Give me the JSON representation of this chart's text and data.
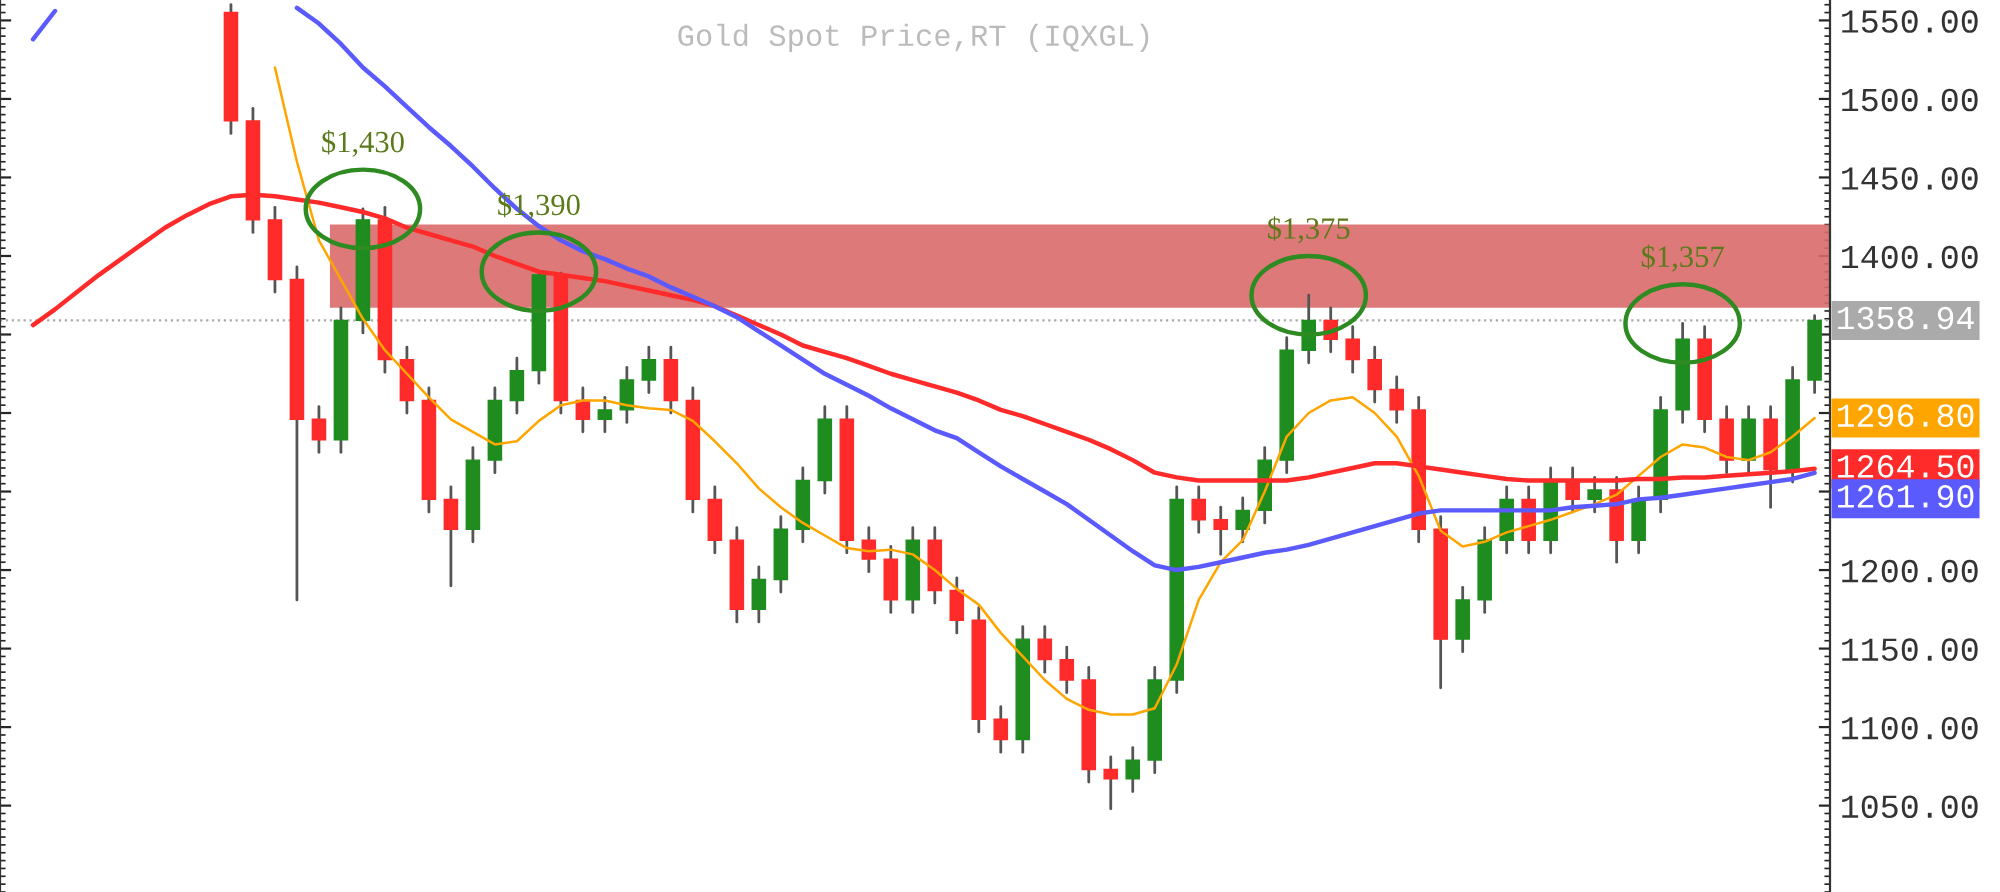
{
  "chart_data": {
    "type": "candlestick",
    "title": "Gold Spot Price,RT (IQXGL)",
    "categories": [
      null,
      null,
      null,
      null,
      null,
      null,
      null,
      null,
      null,
      null,
      null,
      null,
      null,
      null,
      null,
      null,
      null,
      null,
      null,
      null,
      null,
      null,
      null,
      null,
      null,
      null,
      null,
      null,
      null,
      null,
      null,
      null,
      null,
      null,
      null,
      null,
      null,
      null,
      null,
      null,
      null,
      null,
      null,
      null,
      null,
      null,
      null,
      null,
      null,
      null,
      null,
      null,
      null,
      null,
      null,
      null,
      null,
      null,
      null,
      null,
      null,
      null,
      null,
      null,
      null,
      null,
      null,
      null,
      null,
      null,
      null,
      null,
      null,
      null,
      null,
      null,
      null,
      null,
      null,
      null,
      null,
      null
    ],
    "ohlc": [
      null,
      null,
      null,
      null,
      null,
      null,
      null,
      null,
      null,
      [
        1555,
        1560,
        1478,
        1486
      ],
      [
        1486,
        1494,
        1415,
        1423
      ],
      [
        1423,
        1431,
        1377,
        1385
      ],
      [
        1385,
        1393,
        1181,
        1296
      ],
      [
        1296,
        1304,
        1275,
        1283
      ],
      [
        1283,
        1367,
        1275,
        1359
      ],
      [
        1359,
        1430,
        1351,
        1423
      ],
      [
        1423,
        1431,
        1326,
        1334
      ],
      [
        1334,
        1342,
        1300,
        1308
      ],
      [
        1308,
        1316,
        1237,
        1245
      ],
      [
        1245,
        1253,
        1190,
        1226
      ],
      [
        1226,
        1278,
        1218,
        1270
      ],
      [
        1270,
        1316,
        1262,
        1308
      ],
      [
        1308,
        1335,
        1300,
        1327
      ],
      [
        1327,
        1390,
        1319,
        1388
      ],
      [
        1388,
        1389,
        1300,
        1308
      ],
      [
        1308,
        1316,
        1288,
        1296
      ],
      [
        1296,
        1310,
        1288,
        1302
      ],
      [
        1302,
        1329,
        1294,
        1321
      ],
      [
        1321,
        1342,
        1313,
        1334
      ],
      [
        1334,
        1342,
        1300,
        1308
      ],
      [
        1308,
        1316,
        1237,
        1245
      ],
      [
        1245,
        1253,
        1211,
        1219
      ],
      [
        1219,
        1227,
        1167,
        1175
      ],
      [
        1175,
        1202,
        1167,
        1194
      ],
      [
        1194,
        1234,
        1186,
        1226
      ],
      [
        1226,
        1265,
        1218,
        1257
      ],
      [
        1257,
        1304,
        1249,
        1296
      ],
      [
        1296,
        1304,
        1211,
        1219
      ],
      [
        1219,
        1227,
        1199,
        1207
      ],
      [
        1207,
        1215,
        1173,
        1181
      ],
      [
        1181,
        1227,
        1173,
        1219
      ],
      [
        1219,
        1227,
        1179,
        1187
      ],
      [
        1187,
        1195,
        1160,
        1168
      ],
      [
        1168,
        1176,
        1097,
        1105
      ],
      [
        1105,
        1113,
        1084,
        1092
      ],
      [
        1092,
        1164,
        1084,
        1156
      ],
      [
        1156,
        1164,
        1135,
        1143
      ],
      [
        1143,
        1151,
        1122,
        1130
      ],
      [
        1130,
        1138,
        1065,
        1073
      ],
      [
        1073,
        1081,
        1048,
        1067
      ],
      [
        1067,
        1087,
        1059,
        1079
      ],
      [
        1079,
        1138,
        1071,
        1130
      ],
      [
        1130,
        1253,
        1122,
        1245
      ],
      [
        1245,
        1253,
        1224,
        1232
      ],
      [
        1232,
        1240,
        1210,
        1226
      ],
      [
        1226,
        1246,
        1218,
        1238
      ],
      [
        1238,
        1278,
        1230,
        1270
      ],
      [
        1270,
        1348,
        1262,
        1340
      ],
      [
        1340,
        1375,
        1332,
        1359
      ],
      [
        1359,
        1367,
        1339,
        1347
      ],
      [
        1347,
        1355,
        1326,
        1334
      ],
      [
        1334,
        1342,
        1307,
        1315
      ],
      [
        1315,
        1323,
        1294,
        1302
      ],
      [
        1302,
        1310,
        1218,
        1226
      ],
      [
        1226,
        1234,
        1125,
        1156
      ],
      [
        1156,
        1189,
        1148,
        1181
      ],
      [
        1181,
        1227,
        1173,
        1219
      ],
      [
        1219,
        1253,
        1211,
        1245
      ],
      [
        1245,
        1253,
        1211,
        1219
      ],
      [
        1219,
        1265,
        1211,
        1257
      ],
      [
        1257,
        1265,
        1237,
        1245
      ],
      [
        1245,
        1259,
        1237,
        1251
      ],
      [
        1251,
        1259,
        1205,
        1219
      ],
      [
        1219,
        1253,
        1211,
        1245
      ],
      [
        1245,
        1310,
        1237,
        1302
      ],
      [
        1302,
        1357,
        1294,
        1347
      ],
      [
        1347,
        1355,
        1288,
        1296
      ],
      [
        1296,
        1304,
        1262,
        1270
      ],
      [
        1270,
        1304,
        1262,
        1296
      ],
      [
        1296,
        1304,
        1240,
        1264
      ],
      [
        1264,
        1329,
        1256,
        1321
      ],
      [
        1321,
        1362,
        1313,
        1358.94
      ]
    ],
    "series": [
      {
        "type": "line",
        "color": "#ffa500",
        "values": [
          null,
          null,
          null,
          null,
          null,
          null,
          null,
          null,
          null,
          null,
          null,
          1520,
          1460,
          1410,
          1385,
          1360,
          1340,
          1325,
          1310,
          1296,
          1288,
          1280,
          1282,
          1295,
          1305,
          1308,
          1308,
          1305,
          1303,
          1302,
          1295,
          1282,
          1268,
          1252,
          1240,
          1230,
          1222,
          1214,
          1212,
          1213,
          1210,
          1200,
          1188,
          1178,
          1160,
          1145,
          1130,
          1118,
          1111,
          1108,
          1108,
          1112,
          1140,
          1181,
          1205,
          1219,
          1250,
          1285,
          1300,
          1308,
          1310,
          1300,
          1285,
          1260,
          1225,
          1215,
          1218,
          1224,
          1228,
          1232,
          1237,
          1242,
          1248,
          1260,
          1272,
          1280,
          1278,
          1272,
          1270,
          1275,
          1285,
          1296.8
        ],
        "value_labels": [
          null,
          null,
          null,
          null,
          null,
          null,
          null,
          null,
          null,
          null,
          null,
          null,
          null,
          null,
          null,
          null,
          null,
          null,
          null,
          null,
          null,
          null,
          null,
          null,
          null,
          null,
          null,
          null,
          null,
          null,
          null,
          null,
          null,
          null,
          null,
          null,
          null,
          null,
          null,
          null,
          null,
          null,
          null,
          null,
          null,
          null,
          null,
          null,
          null,
          null,
          null,
          null,
          null,
          null,
          null,
          null,
          null,
          null,
          null,
          null,
          null,
          null,
          null,
          null,
          null,
          null,
          null,
          null,
          null,
          null,
          null,
          null,
          null,
          null,
          null,
          null,
          null,
          null,
          null,
          null,
          null,
          "1296.80"
        ]
      },
      {
        "type": "line",
        "color": "#ff2a2a",
        "values": [
          1356,
          1366,
          1377,
          1388,
          1398,
          1408,
          1418,
          1426,
          1433,
          1438,
          1439,
          1438,
          1436,
          1434,
          1431,
          1428,
          1424,
          1418,
          1414,
          1410,
          1406,
          1400,
          1395,
          1390,
          1388,
          1386,
          1384,
          1381,
          1378,
          1375,
          1372,
          1368,
          1362,
          1356,
          1350,
          1343,
          1339,
          1335,
          1330,
          1325,
          1321,
          1317,
          1313,
          1308,
          1302,
          1298,
          1293,
          1288,
          1283,
          1277,
          1270,
          1262,
          1259,
          1257,
          1257,
          1257,
          1257,
          1257,
          1259,
          1262,
          1265,
          1268,
          1268,
          1266,
          1264,
          1262,
          1260,
          1258,
          1257,
          1257,
          1257,
          1257,
          1257,
          1258,
          1258,
          1259,
          1259,
          1260,
          1261,
          1262,
          1263,
          1264.5
        ],
        "value_labels": [
          null,
          null,
          null,
          null,
          null,
          null,
          null,
          null,
          null,
          null,
          null,
          null,
          null,
          null,
          null,
          null,
          null,
          null,
          null,
          null,
          null,
          null,
          null,
          null,
          null,
          null,
          null,
          null,
          null,
          null,
          null,
          null,
          null,
          null,
          null,
          null,
          null,
          null,
          null,
          null,
          null,
          null,
          null,
          null,
          null,
          null,
          null,
          null,
          null,
          null,
          null,
          null,
          null,
          null,
          null,
          null,
          null,
          null,
          null,
          null,
          null,
          null,
          null,
          null,
          null,
          null,
          null,
          null,
          null,
          null,
          null,
          null,
          null,
          null,
          null,
          null,
          null,
          null,
          null,
          null,
          null,
          "1264.50"
        ]
      },
      {
        "type": "line",
        "color": "#5a5aff",
        "values": [
          1538,
          1556,
          null,
          null,
          null,
          null,
          null,
          null,
          null,
          null,
          null,
          null,
          1558,
          1548,
          1535,
          1520,
          1508,
          1495,
          1482,
          1470,
          1457,
          1443,
          1430,
          1419,
          1410,
          1403,
          1398,
          1392,
          1387,
          1380,
          1374,
          1368,
          1361,
          1352,
          1343,
          1334,
          1325,
          1318,
          1311,
          1303,
          1296,
          1289,
          1284,
          1275,
          1266,
          1258,
          1250,
          1242,
          1232,
          1222,
          1212,
          1203,
          1200,
          1202,
          1205,
          1208,
          1211,
          1213,
          1216,
          1220,
          1224,
          1228,
          1232,
          1236,
          1238,
          1238,
          1238,
          1238,
          1238,
          1238,
          1240,
          1241,
          1242,
          1245,
          1246,
          1248,
          1250,
          1252,
          1254,
          1256,
          1258,
          1261.9
        ],
        "value_labels": [
          null,
          null,
          null,
          null,
          null,
          null,
          null,
          null,
          null,
          null,
          null,
          null,
          null,
          null,
          null,
          null,
          null,
          null,
          null,
          null,
          null,
          null,
          null,
          null,
          null,
          null,
          null,
          null,
          null,
          null,
          null,
          null,
          null,
          null,
          null,
          null,
          null,
          null,
          null,
          null,
          null,
          null,
          null,
          null,
          null,
          null,
          null,
          null,
          null,
          null,
          null,
          null,
          null,
          null,
          null,
          null,
          null,
          null,
          null,
          null,
          null,
          null,
          null,
          null,
          null,
          null,
          null,
          null,
          null,
          null,
          null,
          null,
          null,
          null,
          null,
          null,
          null,
          null,
          null,
          null,
          null,
          "1261.90"
        ]
      }
    ],
    "ylim": [
      995,
      1563
    ],
    "yticks": [
      {
        "value": 1050,
        "label": "1050.00"
      },
      {
        "value": 1100,
        "label": "1100.00"
      },
      {
        "value": 1150,
        "label": "1150.00"
      },
      {
        "value": 1200,
        "label": "1200.00"
      },
      {
        "value": 1250,
        "label": null
      },
      {
        "value": 1300,
        "label": null
      },
      {
        "value": 1350,
        "label": null
      },
      {
        "value": 1400,
        "label": "1400.00"
      },
      {
        "value": 1450,
        "label": "1450.00"
      },
      {
        "value": 1500,
        "label": "1500.00"
      },
      {
        "value": 1550,
        "label": "1550.00"
      }
    ],
    "bands": [
      {
        "axis": "y",
        "from": 1367,
        "to": 1420,
        "color": "#d96a6a"
      }
    ],
    "ref_lines": [
      {
        "axis": "y",
        "value": 1358.94,
        "label": "1358.94",
        "color": "#aaaaaa",
        "line_style": "dotted"
      }
    ],
    "annotations": [
      {
        "text": "$1,430",
        "y": 1430
      },
      {
        "text": "$1,390",
        "y": 1390
      },
      {
        "text": "$1,375",
        "y": 1375
      },
      {
        "text": "$1,357",
        "y": 1357
      }
    ],
    "tick_labels": "y",
    "grid": false,
    "legend": false
  }
}
